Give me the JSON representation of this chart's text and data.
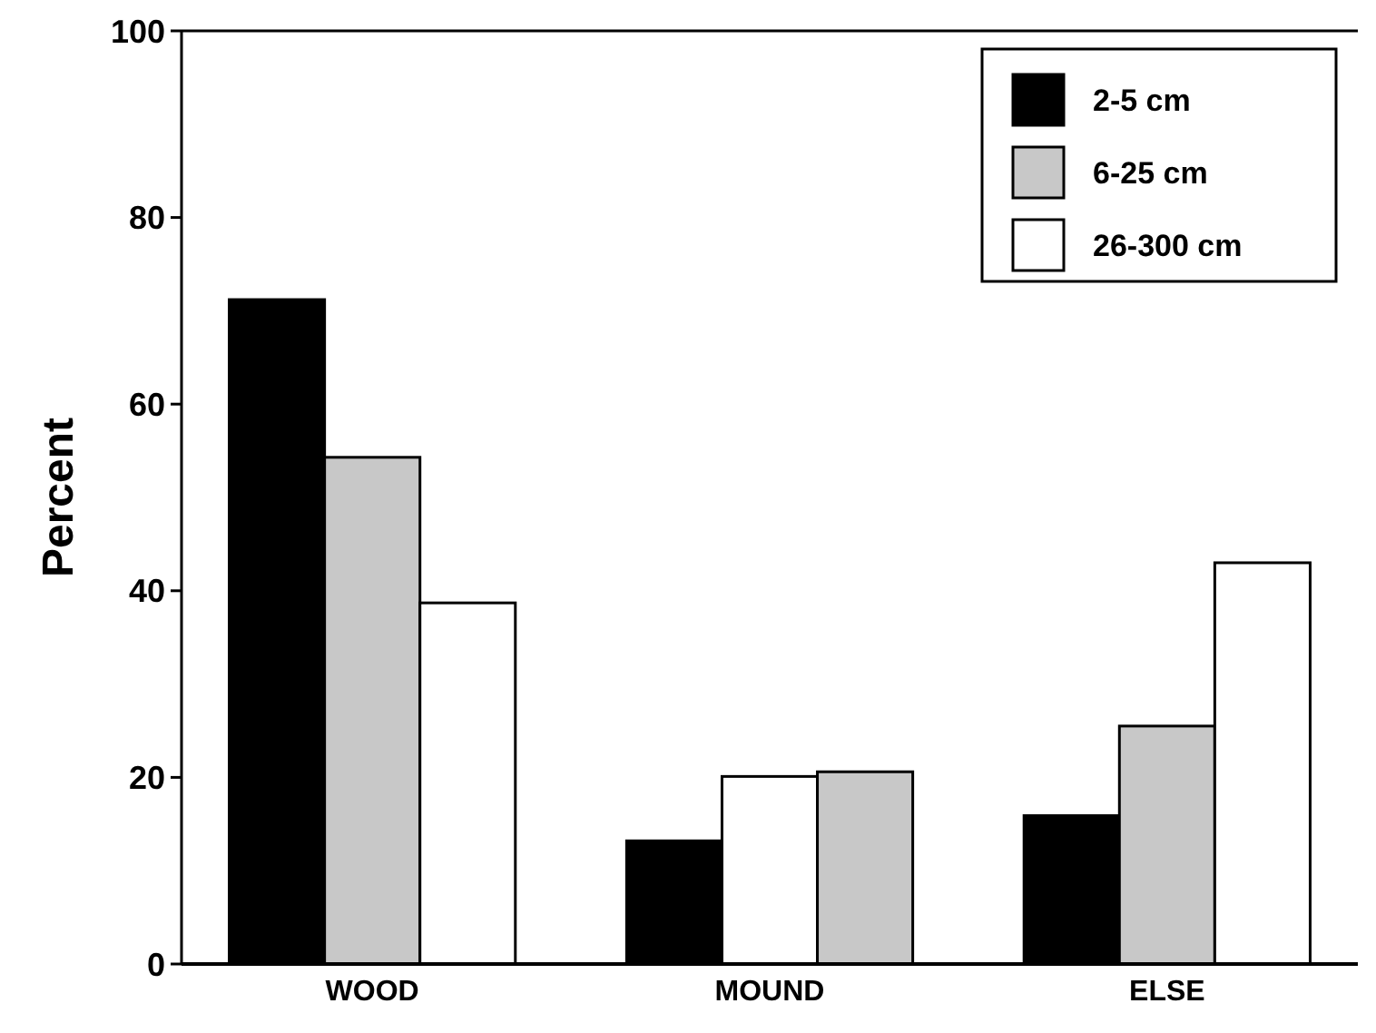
{
  "chart_data": {
    "type": "bar",
    "ylabel": "Percent",
    "categories": [
      "WOOD",
      "MOUND",
      "ELSE"
    ],
    "series": [
      {
        "name": "2-5 cm",
        "color": "#000000",
        "values": [
          71.2,
          13.2,
          15.9
        ]
      },
      {
        "name": "6-25 cm",
        "color": "#c8c8c8",
        "colors": [
          "#c8c8c8",
          "#ffffff",
          "#c8c8c8"
        ],
        "values": [
          54.3,
          20.1,
          25.5
        ]
      },
      {
        "name": "26-300 cm",
        "color": "#ffffff",
        "colors": [
          "#ffffff",
          "#c8c8c8",
          "#ffffff"
        ],
        "values": [
          38.7,
          20.6,
          43
        ]
      }
    ],
    "ylim": [
      0,
      100
    ],
    "yticks": [
      0,
      20,
      40,
      60,
      80,
      100
    ],
    "grid": false,
    "legend": "top right"
  }
}
